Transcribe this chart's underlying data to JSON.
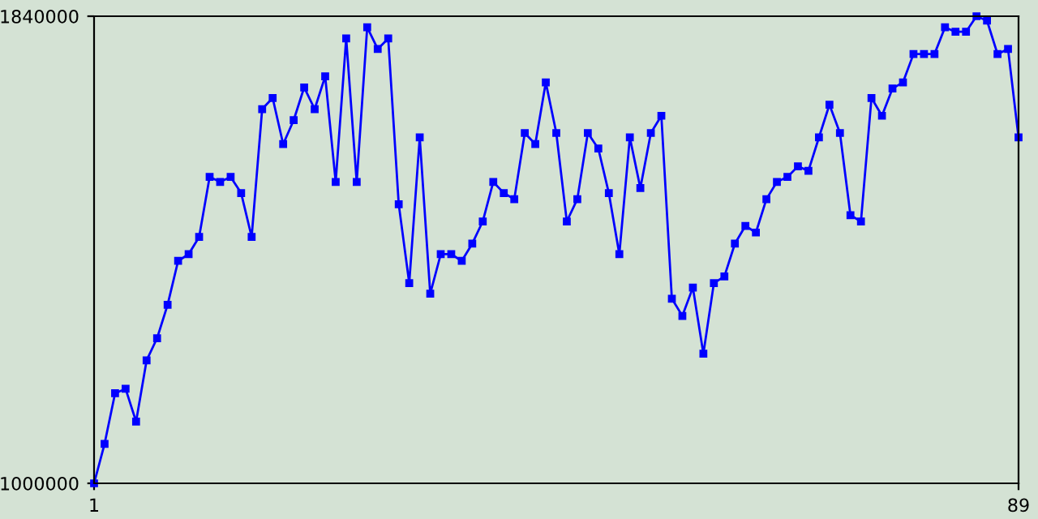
{
  "chart_data": {
    "type": "line",
    "x": [
      1,
      2,
      3,
      4,
      5,
      6,
      7,
      8,
      9,
      10,
      11,
      12,
      13,
      14,
      15,
      16,
      17,
      18,
      19,
      20,
      21,
      22,
      23,
      24,
      25,
      26,
      27,
      28,
      29,
      30,
      31,
      32,
      33,
      34,
      35,
      36,
      37,
      38,
      39,
      40,
      41,
      42,
      43,
      44,
      45,
      46,
      47,
      48,
      49,
      50,
      51,
      52,
      53,
      54,
      55,
      56,
      57,
      58,
      59,
      60,
      61,
      62,
      63,
      64,
      65,
      66,
      67,
      68,
      69,
      70,
      71,
      72,
      73,
      74,
      75,
      76,
      77,
      78,
      79,
      80,
      81,
      82,
      83,
      84,
      85,
      86,
      87,
      88,
      89
    ],
    "series": [
      {
        "color": "#0000ff",
        "values": [
          1000000,
          1071000,
          1162000,
          1170000,
          1111000,
          1221000,
          1261000,
          1321000,
          1400000,
          1412000,
          1443000,
          1551000,
          1542000,
          1551000,
          1522000,
          1443000,
          1673000,
          1693000,
          1610000,
          1653000,
          1712000,
          1673000,
          1732000,
          1542000,
          1800000,
          1542000,
          1820000,
          1781000,
          1800000,
          1502000,
          1360000,
          1622000,
          1341000,
          1412000,
          1412000,
          1400000,
          1431000,
          1471000,
          1542000,
          1522000,
          1511000,
          1630000,
          1610000,
          1721000,
          1630000,
          1471000,
          1511000,
          1630000,
          1602000,
          1522000,
          1412000,
          1622000,
          1531000,
          1630000,
          1661000,
          1332000,
          1301000,
          1352000,
          1233000,
          1360000,
          1372000,
          1431000,
          1463000,
          1451000,
          1511000,
          1542000,
          1551000,
          1570000,
          1562000,
          1622000,
          1681000,
          1630000,
          1482000,
          1471000,
          1693000,
          1661000,
          1710000,
          1721000,
          1772000,
          1772000,
          1772000,
          1820000,
          1812000,
          1812000,
          1840000,
          1832000,
          1772000,
          1781000,
          1622000
        ]
      }
    ],
    "xlim": [
      1,
      89
    ],
    "ylim": [
      1000000,
      1840000
    ],
    "xticks": [
      1,
      89
    ],
    "yticks": [
      1000000,
      1840000
    ],
    "grid": false,
    "marker": "square",
    "line_style": "solid"
  }
}
